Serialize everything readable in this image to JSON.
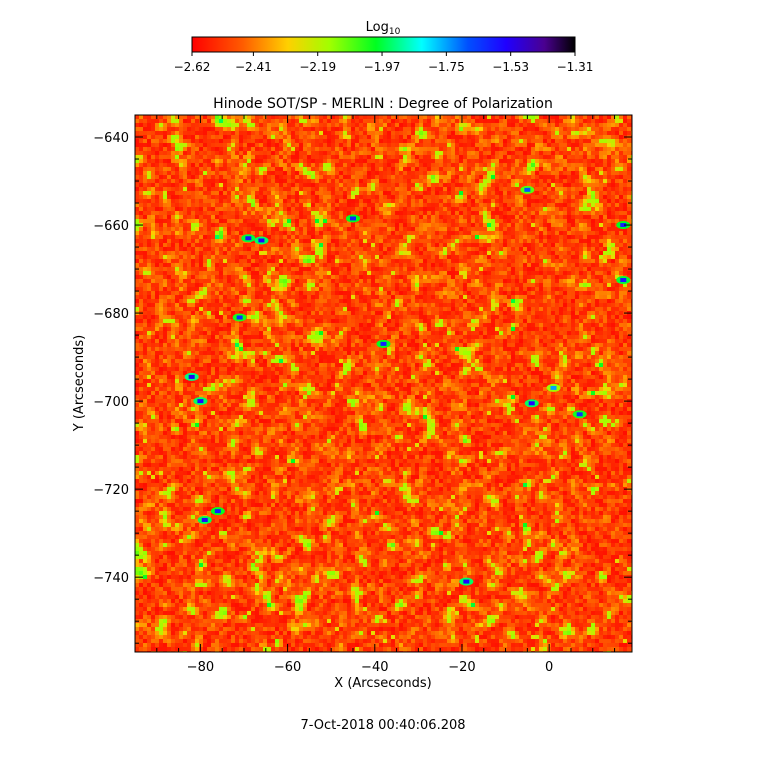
{
  "chart_data": {
    "type": "heatmap",
    "title": "Hinode SOT/SP - MERLIN : Degree of Polarization",
    "xlabel": "X (Arcseconds)",
    "ylabel": "Y (Arcseconds)",
    "xlim": [
      -95,
      19
    ],
    "ylim": [
      -757,
      -635
    ],
    "x_ticks": [
      -80,
      -60,
      -40,
      -20,
      0
    ],
    "y_ticks": [
      -640,
      -660,
      -680,
      -700,
      -720,
      -740
    ],
    "x_tick_labels": [
      "−80",
      "−60",
      "−40",
      "−20",
      "0"
    ],
    "y_tick_labels": [
      "−640",
      "−660",
      "−680",
      "−700",
      "−720",
      "−740"
    ],
    "colorbar": {
      "title": "Log",
      "title_sub": "10",
      "range": [
        -2.62,
        -1.31
      ],
      "ticks": [
        -2.62,
        -2.41,
        -2.19,
        -1.97,
        -1.75,
        -1.53,
        -1.31
      ],
      "tick_labels": [
        "−2.62",
        "−2.41",
        "−2.19",
        "−1.97",
        "−1.75",
        "−1.53",
        "−1.31"
      ],
      "colormap": "rainbow-reversed (red → orange → yellow → green → cyan → blue → purple → black)"
    },
    "field_summary": "Mostly red/orange values near -2.62 to -2.41 with scattered yellow-green patches near -2.19 to -1.97 and isolated blue points near -1.53",
    "hotspots": [
      {
        "x": -82,
        "y": -694.5,
        "value": -1.53
      },
      {
        "x": -80,
        "y": -700,
        "value": -1.55
      },
      {
        "x": -66,
        "y": -663.5,
        "value": -1.55
      },
      {
        "x": -69,
        "y": -663,
        "value": -1.58
      },
      {
        "x": -79,
        "y": -727,
        "value": -1.56
      },
      {
        "x": -76,
        "y": -725,
        "value": -1.6
      },
      {
        "x": -45,
        "y": -658.5,
        "value": -1.6
      },
      {
        "x": -4,
        "y": -700.5,
        "value": -1.55
      },
      {
        "x": 1,
        "y": -697,
        "value": -1.75
      },
      {
        "x": 7,
        "y": -703,
        "value": -1.62
      },
      {
        "x": 17,
        "y": -672.5,
        "value": -1.58
      },
      {
        "x": -19,
        "y": -741,
        "value": -1.55
      },
      {
        "x": -71,
        "y": -681,
        "value": -1.62
      },
      {
        "x": -38,
        "y": -687,
        "value": -1.6
      },
      {
        "x": -5,
        "y": -652,
        "value": -1.68
      },
      {
        "x": 17,
        "y": -660,
        "value": -1.6
      }
    ]
  },
  "footer": {
    "timestamp": "7-Oct-2018 00:40:06.208"
  },
  "colors": {
    "background": "#ffffff",
    "axis": "#000000"
  }
}
